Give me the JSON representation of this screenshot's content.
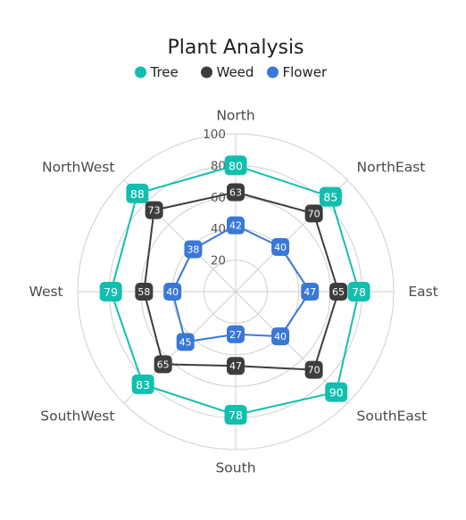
{
  "chart_data": {
    "type": "radar",
    "title": "Plant Analysis",
    "categories": [
      "North",
      "NorthEast",
      "East",
      "SouthEast",
      "South",
      "SouthWest",
      "West",
      "NorthWest"
    ],
    "rlim": [
      0,
      100
    ],
    "ticks": [
      20,
      40,
      60,
      80,
      100
    ],
    "grid": true,
    "grid_shape": "circle",
    "legend_position": "top",
    "series": [
      {
        "name": "Tree",
        "color": "#12bfae",
        "values": [
          80,
          85,
          78,
          90,
          78,
          83,
          79,
          88
        ]
      },
      {
        "name": "Weed",
        "color": "#3d3d3d",
        "values": [
          63,
          70,
          65,
          70,
          47,
          65,
          58,
          73
        ]
      },
      {
        "name": "Flower",
        "color": "#3a78d6",
        "values": [
          42,
          40,
          47,
          40,
          27,
          45,
          40,
          38
        ]
      }
    ]
  }
}
